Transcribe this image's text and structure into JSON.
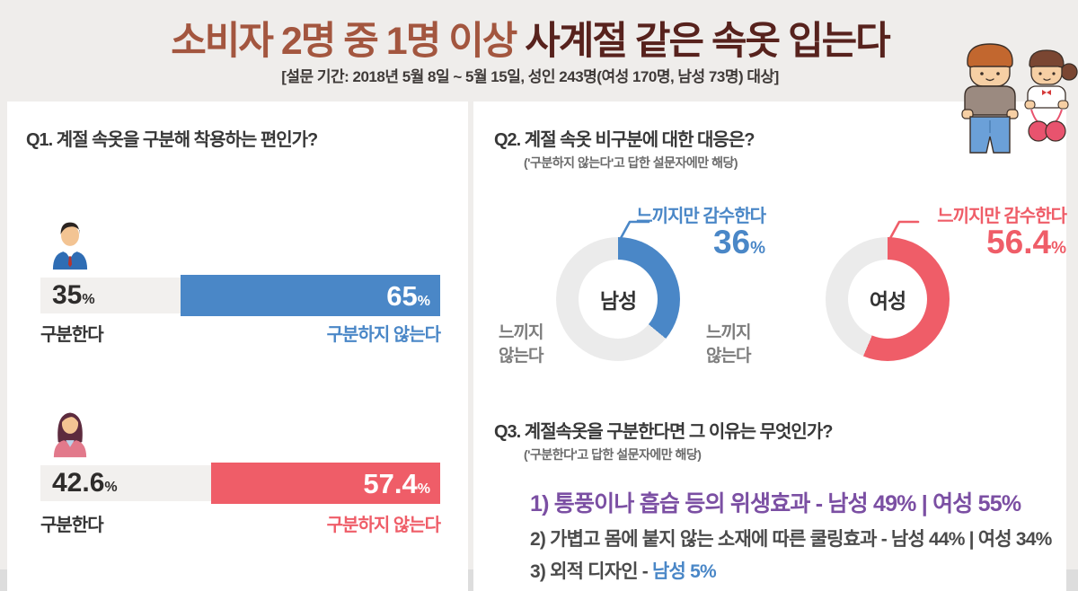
{
  "palette": {
    "bg": "#efedeb",
    "card": "#ffffff",
    "brown": "#a3563f",
    "maroon": "#57221d",
    "blue": "#4a87c7",
    "red": "#ef5d68",
    "purple": "#7b4fa3",
    "bar-gray": "#f2f0ee",
    "donut-gray": "#ebebeb",
    "text-dark": "#383838"
  },
  "header": {
    "title_part1": "소비자 2명 중 1명 이상",
    "title_part2": " 사계절 같은 속옷 입는다",
    "subtitle": "[설문 기간: 2018년 5월 8일 ~ 5월 15일, 성인 243명(여성 170명, 남성 73명) 대상]"
  },
  "q1": {
    "title": "Q1. 계절 속옷을 구분해 착용하는 편인가?",
    "rows": [
      {
        "group": "남성",
        "left_value": "35",
        "left_unit": "%",
        "left_label": "구분한다",
        "right_value": "65",
        "right_unit": "%",
        "right_label": "구분하지 않는다"
      },
      {
        "group": "여성",
        "left_value": "42.6",
        "left_unit": "%",
        "left_label": "구분한다",
        "right_value": "57.4",
        "right_unit": "%",
        "right_label": "구분하지 않는다"
      }
    ]
  },
  "q2": {
    "title": "Q2. 계절 속옷 비구분에 대한 대응은?",
    "subtitle": "('구분하지 않는다'고 답한 설문자에만 해당)",
    "donuts": [
      {
        "center_label": "남성",
        "callout_label": "느끼지만 감수한다",
        "value": "36",
        "unit": "%",
        "outside_line1": "느끼지",
        "outside_line2": "않는다"
      },
      {
        "center_label": "여성",
        "callout_label": "느끼지만 감수한다",
        "value": "56.4",
        "unit": "%",
        "outside_line1": "느끼지",
        "outside_line2": "않는다"
      }
    ]
  },
  "q3": {
    "title": "Q3. 계절속옷을 구분한다면 그 이유는 무엇인가?",
    "subtitle": "('구분한다'고 답한 설문자에만 해당)",
    "items": [
      {
        "text": "1) 통풍이나 흡습 등의 위생효과 - 남성 49% | 여성 55%"
      },
      {
        "text": "2) 가볍고 몸에 붙지 않는 소재에 따른 쿨링효과 - 남성 44% | 여성 34%"
      },
      {
        "text_prefix": "3) 외적 디자인 - ",
        "text_highlight": "남성 5%"
      }
    ]
  },
  "chart_data": [
    {
      "type": "bar",
      "title": "Q1. 계절 속옷을 구분해 착용하는 편인가?",
      "orientation": "horizontal_stacked_100pct",
      "categories": [
        "남성",
        "여성"
      ],
      "series": [
        {
          "name": "구분한다",
          "values": [
            35,
            42.6
          ],
          "colors": [
            "#f2f0ee",
            "#f2f0ee"
          ]
        },
        {
          "name": "구분하지 않는다",
          "values": [
            65,
            57.4
          ],
          "colors": [
            "#4a87c7",
            "#ef5d68"
          ]
        }
      ]
    },
    {
      "type": "pie",
      "donut": true,
      "title": "계절 속옷 비구분에 대한 대응 - 남성",
      "labels": [
        "느끼지만 감수한다",
        "느끼지 않는다"
      ],
      "values": [
        36,
        64
      ],
      "colors": [
        "#4a87c7",
        "#ebebeb"
      ],
      "center_label": "남성",
      "start_angle": "12시 방향, 시계방향"
    },
    {
      "type": "pie",
      "donut": true,
      "title": "계절 속옷 비구분에 대한 대응 - 여성",
      "labels": [
        "느끼지만 감수한다",
        "느끼지 않는다"
      ],
      "values": [
        56.4,
        43.6
      ],
      "colors": [
        "#ef5d68",
        "#ebebeb"
      ],
      "center_label": "여성",
      "start_angle": "12시 방향, 시계방향"
    }
  ]
}
